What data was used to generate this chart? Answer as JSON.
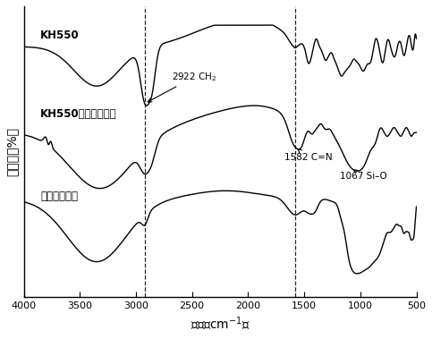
{
  "xlabel": "波数（cm⁻¹）",
  "ylabel": "透射率（%）",
  "xlim": [
    4000,
    500
  ],
  "dashed_lines": [
    2922,
    1582
  ],
  "background_color": "#ffffff",
  "line_color": "#000000",
  "label_kh550": "KH550",
  "label_kh550p": "KH550修饰的荧光粉",
  "label_phosphor": "长余辉荧光粉",
  "ann_2922": "2922 CH₂",
  "ann_1582": "1582 C=N",
  "ann_1067": "1067 Si–O"
}
